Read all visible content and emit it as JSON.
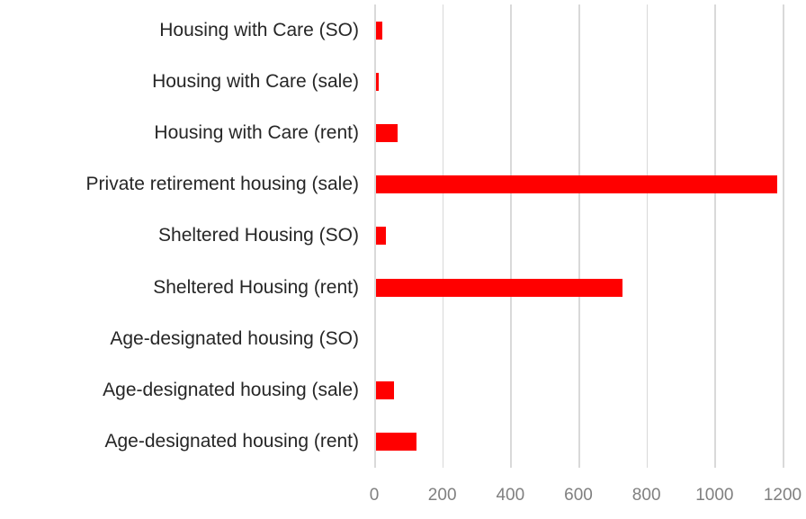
{
  "chart_data": {
    "type": "bar",
    "orientation": "horizontal",
    "title": "",
    "xlabel": "",
    "ylabel": "",
    "categories": [
      "Housing with Care (SO)",
      "Housing with Care (sale)",
      "Housing with Care (rent)",
      "Private retirement housing (sale)",
      "Sheltered Housing (SO)",
      "Sheltered Housing (rent)",
      "Age-designated housing (SO)",
      "Age-designated housing (sale)",
      "Age-designated housing (rent)"
    ],
    "values": [
      20,
      10,
      65,
      1180,
      30,
      725,
      0,
      55,
      120
    ],
    "xlim": [
      0,
      1200
    ],
    "x_ticks": [
      0,
      200,
      400,
      600,
      800,
      1000,
      1200
    ],
    "grid": true,
    "legend": "none",
    "colors": {
      "bar": "#ff0000",
      "gridline": "#d9d9d9",
      "category_label": "#262626",
      "tick_label": "#808080"
    }
  }
}
